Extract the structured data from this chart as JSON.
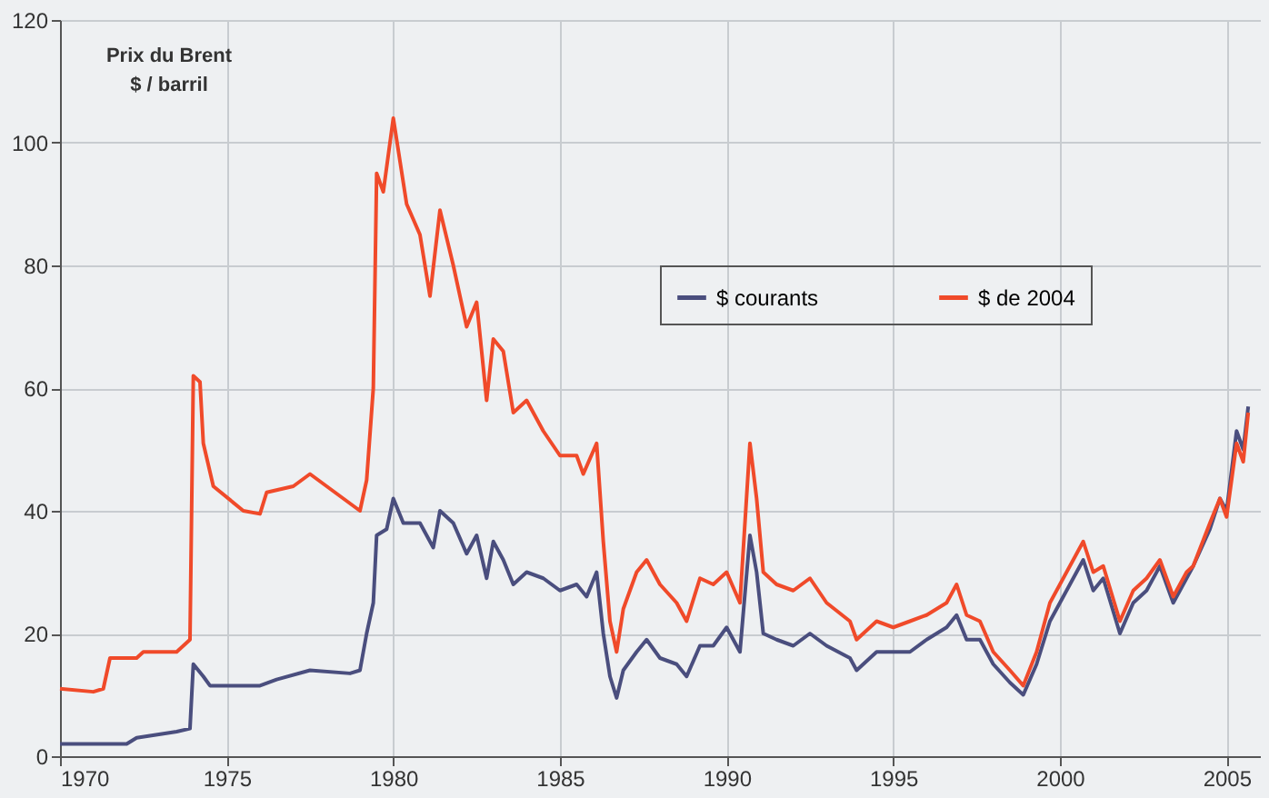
{
  "chart_data": {
    "type": "line",
    "title": "Prix du Brent",
    "subtitle": "$ / barril",
    "xlim": [
      1970,
      2006
    ],
    "xticks": [
      1970,
      1975,
      1980,
      1985,
      1990,
      1995,
      2000,
      2005
    ],
    "ylim": [
      0,
      120
    ],
    "yticks": [
      0,
      20,
      40,
      60,
      80,
      100,
      120
    ],
    "grid": true,
    "legend": "right",
    "line_style": "solid",
    "marker": "none",
    "series": [
      {
        "name": "$ courants",
        "color": "#4a4e7e",
        "x": [
          1970,
          1972,
          1972.3,
          1973.5,
          1973.9,
          1974,
          1974.3,
          1974.5,
          1976,
          1976.5,
          1977.5,
          1978.7,
          1979,
          1979.2,
          1979.4,
          1979.5,
          1979.8,
          1980,
          1980.3,
          1980.8,
          1981.2,
          1981.4,
          1981.8,
          1982.2,
          1982.5,
          1982.8,
          1983,
          1983.3,
          1983.6,
          1984,
          1984.5,
          1985,
          1985.5,
          1985.8,
          1986.1,
          1986.3,
          1986.5,
          1986.7,
          1986.9,
          1987.3,
          1987.6,
          1988,
          1988.5,
          1988.8,
          1989.2,
          1989.6,
          1990,
          1990.4,
          1990.7,
          1990.9,
          1991.1,
          1991.5,
          1992,
          1992.5,
          1993,
          1993.7,
          1993.9,
          1994.5,
          1995,
          1995.5,
          1996,
          1996.6,
          1996.9,
          1997.2,
          1997.6,
          1998,
          1998.5,
          1998.9,
          1999.3,
          1999.7,
          2000,
          2000.7,
          2001,
          2001.3,
          2001.8,
          2002.2,
          2002.6,
          2003,
          2003.4,
          2003.8,
          2004,
          2004.5,
          2004.8,
          2005,
          2005.3,
          2005.5,
          2005.65
        ],
        "values": [
          2,
          2,
          3,
          4,
          4.5,
          15,
          13,
          11.5,
          11.5,
          12.5,
          14,
          13.5,
          14,
          20,
          25,
          36,
          37,
          42,
          38,
          38,
          34,
          40,
          38,
          33,
          36,
          29,
          35,
          32,
          28,
          30,
          29,
          27,
          28,
          26,
          30,
          20,
          13,
          9.5,
          14,
          17,
          19,
          16,
          15,
          13,
          18,
          18,
          21,
          17,
          36,
          30,
          20,
          19,
          18,
          20,
          18,
          16,
          14,
          17,
          17,
          17,
          19,
          21,
          23,
          19,
          19,
          15,
          12,
          10,
          15,
          22,
          25,
          32,
          27,
          29,
          20,
          25,
          27,
          31,
          25,
          29,
          31,
          37,
          42,
          40,
          53,
          50,
          57
        ]
      },
      {
        "name": "$ de 2004",
        "color": "#f04a2a",
        "x": [
          1970,
          1971,
          1971.3,
          1971.5,
          1972.3,
          1972.5,
          1973.5,
          1973.9,
          1974,
          1974.2,
          1974.3,
          1974.6,
          1975.5,
          1976,
          1976.2,
          1977,
          1977.5,
          1978.5,
          1979,
          1979.2,
          1979.4,
          1979.5,
          1979.7,
          1980,
          1980.4,
          1980.8,
          1981.1,
          1981.4,
          1981.8,
          1982.2,
          1982.5,
          1982.8,
          1983,
          1983.3,
          1983.6,
          1984,
          1984.5,
          1985,
          1985.5,
          1985.7,
          1986.1,
          1986.3,
          1986.5,
          1986.7,
          1986.9,
          1987.3,
          1987.6,
          1988,
          1988.5,
          1988.8,
          1989.2,
          1989.6,
          1990,
          1990.4,
          1990.7,
          1990.9,
          1991.1,
          1991.5,
          1992,
          1992.5,
          1993,
          1993.7,
          1993.9,
          1994.5,
          1995,
          1995.5,
          1996,
          1996.6,
          1996.9,
          1997.2,
          1997.6,
          1998,
          1998.5,
          1998.9,
          1999.3,
          1999.7,
          2000,
          2000.7,
          2001,
          2001.3,
          2001.8,
          2002.2,
          2002.6,
          2003,
          2003.4,
          2003.8,
          2004,
          2004.5,
          2004.8,
          2005,
          2005.3,
          2005.5,
          2005.65
        ],
        "values": [
          11,
          10.5,
          11,
          16,
          16,
          17,
          17,
          19,
          62,
          61,
          51,
          44,
          40,
          39.5,
          43,
          44,
          46,
          42,
          40,
          45,
          60,
          95,
          92,
          104,
          90,
          85,
          75,
          89,
          80,
          70,
          74,
          58,
          68,
          66,
          56,
          58,
          53,
          49,
          49,
          46,
          51,
          35,
          22,
          17,
          24,
          30,
          32,
          28,
          25,
          22,
          29,
          28,
          30,
          25,
          51,
          42,
          30,
          28,
          27,
          29,
          25,
          22,
          19,
          22,
          21,
          22,
          23,
          25,
          28,
          23,
          22,
          17,
          14,
          11.5,
          17,
          25,
          28,
          35,
          30,
          31,
          22,
          27,
          29,
          32,
          26,
          30,
          31,
          38,
          42,
          39,
          51,
          48,
          56
        ]
      }
    ]
  }
}
